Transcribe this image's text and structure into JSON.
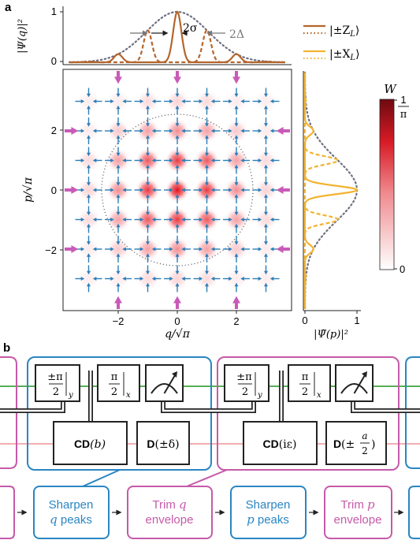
{
  "panel_a": {
    "label": "a",
    "top_plot": {
      "ylabel": "|Ψ(q)|²",
      "yticks": [
        "0",
        "1"
      ],
      "annotation_sigma": "2σ",
      "annotation_delta": "2Δ"
    },
    "legend": {
      "z_label": "|±Z",
      "z_sub": "L",
      "x_label": "|±X",
      "x_sub": "L",
      "ket_close": "⟩",
      "z_color": "#b5652c",
      "x_color": "#f2b431"
    },
    "main_plot": {
      "xlabel": "q/√π",
      "ylabel": "p/√π",
      "xticks": [
        "−2",
        "0",
        "2"
      ],
      "yticks": [
        "2",
        "0",
        "−2"
      ],
      "arrow_color": "#2b7fb8",
      "pump_color": "#c95bb8"
    },
    "side_plot": {
      "xlabel": "|Ψ̃(p)|²",
      "xticks": [
        "0",
        "1"
      ]
    },
    "colorbar": {
      "title": "W",
      "top_num": "1",
      "top_den": "π",
      "bottom": "0",
      "max_color": "#7a0b12"
    }
  },
  "panel_b": {
    "label": "b",
    "gates": {
      "g1_num": "±π",
      "g1_den": "2",
      "g1_sub": "y",
      "g2_num": "π",
      "g2_den": "2",
      "g2_sub": "x",
      "g3_num": "±π",
      "g3_den": "2",
      "g3_sub": "y",
      "g4_num": "π",
      "g4_den": "2",
      "g4_sub": "x"
    },
    "cd1": {
      "bold": "CD",
      "arg": "(b)"
    },
    "d1": {
      "bold": "D",
      "arg": "(±δ)"
    },
    "cd2": {
      "bold": "CD",
      "arg": "(iε)"
    },
    "d2": {
      "bold": "D",
      "open": "(±",
      "num": "a",
      "den": "2",
      "close": ")"
    },
    "steps": [
      {
        "line1": "Sharpen",
        "var": "q",
        "line2": "peaks"
      },
      {
        "line1": "Trim",
        "var": "q",
        "line2": "envelope"
      },
      {
        "line1": "Sharpen",
        "var": "p",
        "line2": "peaks"
      },
      {
        "line1": "Trim",
        "var": "p",
        "line2": "envelope"
      }
    ],
    "colors": {
      "blue": "#2a86c2",
      "magenta": "#c65aa9",
      "green_wire": "#41a53f",
      "pink_wire": "#f0a2a6"
    }
  }
}
